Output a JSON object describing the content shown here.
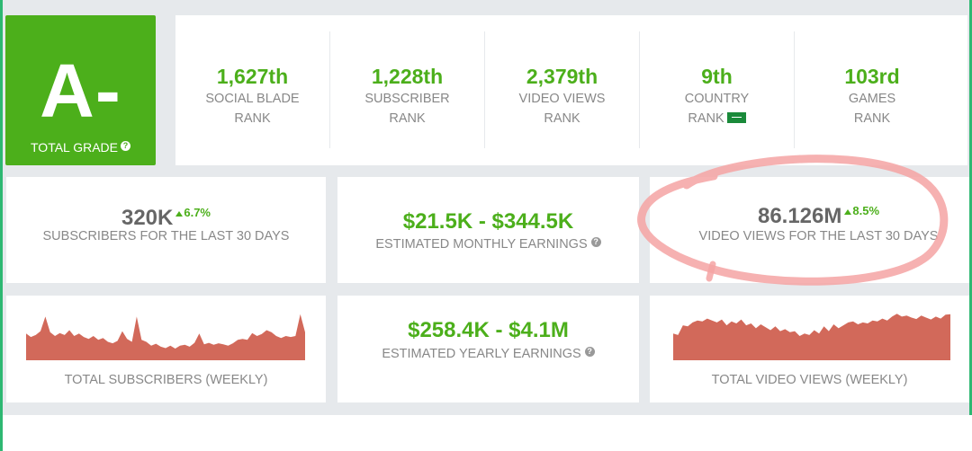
{
  "grade": {
    "letter": "A-",
    "label": "TOTAL GRADE",
    "help": "?"
  },
  "ranks": [
    {
      "value": "1,627th",
      "line1": "SOCIAL BLADE",
      "line2": "RANK"
    },
    {
      "value": "1,228th",
      "line1": "SUBSCRIBER",
      "line2": "RANK"
    },
    {
      "value": "2,379th",
      "line1": "VIDEO VIEWS",
      "line2": "RANK"
    },
    {
      "value": "9th",
      "line1": "COUNTRY",
      "line2": "RANK"
    },
    {
      "value": "103rd",
      "line1": "GAMES",
      "line2": "RANK"
    }
  ],
  "subscribers30": {
    "value": "320K",
    "delta": "6.7%",
    "label": "SUBSCRIBERS FOR THE LAST 30 DAYS"
  },
  "monthlyEarnings": {
    "value": "$21.5K - $344.5K",
    "label": "ESTIMATED MONTHLY EARNINGS",
    "help": "?"
  },
  "views30": {
    "value": "86.126M",
    "delta": "8.5%",
    "label": "VIDEO VIEWS FOR THE LAST 30 DAYS"
  },
  "yearlyEarnings": {
    "value": "$258.4K - $4.1M",
    "label": "ESTIMATED YEARLY EARNINGS",
    "help": "?"
  },
  "subsChart": {
    "label": "TOTAL SUBSCRIBERS (WEEKLY)",
    "color": "#d2695a"
  },
  "viewsChart": {
    "label": "TOTAL VIDEO VIEWS (WEEKLY)",
    "color": "#d2695a"
  },
  "annotation": {
    "color": "#f5a3a3"
  }
}
